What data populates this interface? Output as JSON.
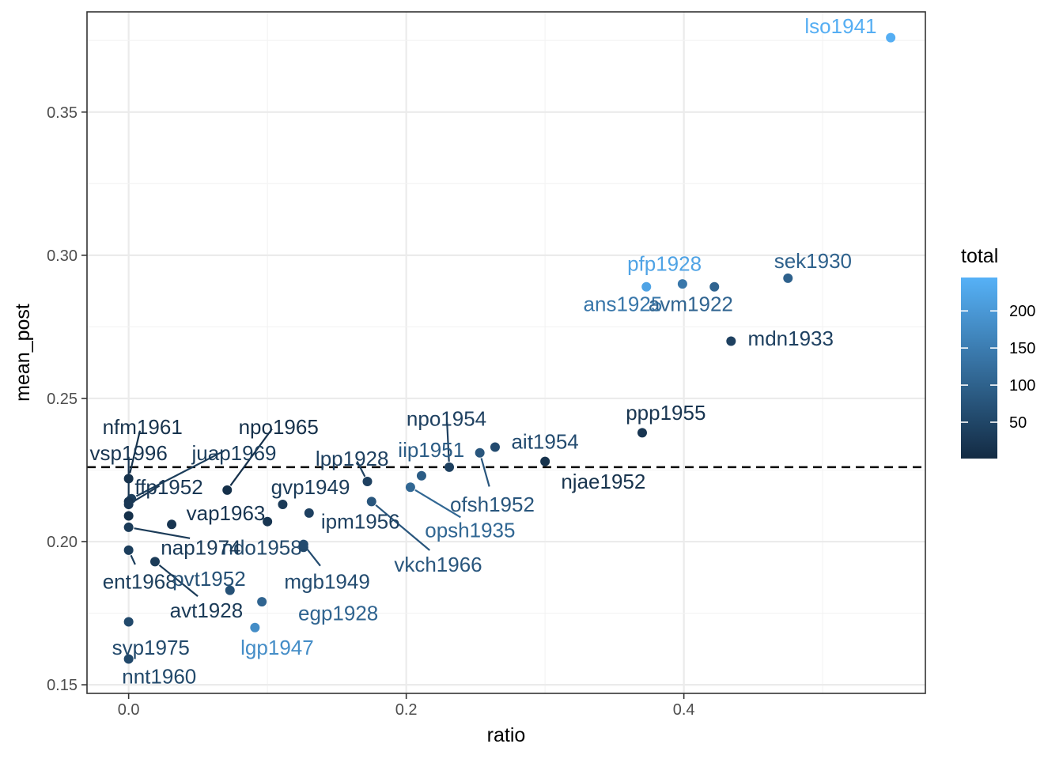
{
  "chart_data": {
    "type": "scatter",
    "xlabel": "ratio",
    "ylabel": "mean_post",
    "xlim": [
      -0.03,
      0.574
    ],
    "ylim": [
      0.147,
      0.385
    ],
    "x_ticks": [
      0.0,
      0.2,
      0.4
    ],
    "x_tick_labels": [
      "0.0",
      "0.2",
      "0.4"
    ],
    "y_ticks": [
      0.15,
      0.2,
      0.25,
      0.3,
      0.35
    ],
    "y_tick_labels": [
      "0.15",
      "0.20",
      "0.25",
      "0.30",
      "0.35"
    ],
    "grid": true,
    "reference_line": {
      "orientation": "horizontal",
      "y": 0.226,
      "style": "dashed"
    },
    "color_scale": {
      "title": "total",
      "min": 1,
      "max": 245,
      "ticks": [
        50,
        100,
        150,
        200
      ],
      "tick_labels": [
        "50",
        "100",
        "150",
        "200"
      ],
      "low_color": "#132B43",
      "high_color": "#56B1F7",
      "legend_placement": "right"
    },
    "points": [
      {
        "label": "lso1941",
        "x": 0.549,
        "y": 0.376,
        "total": 240,
        "lx": 0.513,
        "ly": 0.38
      },
      {
        "label": "sek1930",
        "x": 0.475,
        "y": 0.292,
        "total": 100,
        "lx": 0.493,
        "ly": 0.298
      },
      {
        "label": "pfp1928",
        "x": 0.373,
        "y": 0.289,
        "total": 220,
        "lx": 0.386,
        "ly": 0.297
      },
      {
        "label": "ans1925",
        "x": 0.399,
        "y": 0.29,
        "total": 140,
        "lx": 0.356,
        "ly": 0.283
      },
      {
        "label": "avm1922",
        "x": 0.422,
        "y": 0.289,
        "total": 105,
        "lx": 0.405,
        "ly": 0.283
      },
      {
        "label": "mdn1933",
        "x": 0.434,
        "y": 0.27,
        "total": 40,
        "lx": 0.477,
        "ly": 0.271
      },
      {
        "label": "ppp1955",
        "x": 0.37,
        "y": 0.238,
        "total": 20,
        "lx": 0.387,
        "ly": 0.245
      },
      {
        "label": "njae1952",
        "x": 0.3,
        "y": 0.228,
        "total": 15,
        "lx": 0.342,
        "ly": 0.221
      },
      {
        "label": "ait1954",
        "x": 0.264,
        "y": 0.233,
        "total": 60,
        "lx": 0.3,
        "ly": 0.235
      },
      {
        "label": "npo1954",
        "x": 0.231,
        "y": 0.226,
        "total": 40,
        "lx": 0.229,
        "ly": 0.243,
        "leader": true
      },
      {
        "label": "ofsh1952",
        "x": 0.253,
        "y": 0.231,
        "total": 80,
        "lx": 0.262,
        "ly": 0.213,
        "leader": true
      },
      {
        "label": "iip1951",
        "x": 0.211,
        "y": 0.223,
        "total": 90,
        "lx": 0.218,
        "ly": 0.232
      },
      {
        "label": "opsh1935",
        "x": 0.203,
        "y": 0.219,
        "total": 110,
        "lx": 0.246,
        "ly": 0.204,
        "leader": true
      },
      {
        "label": "lpp1928",
        "x": 0.172,
        "y": 0.221,
        "total": 40,
        "lx": 0.161,
        "ly": 0.229,
        "leader": true
      },
      {
        "label": "vkch1966",
        "x": 0.175,
        "y": 0.214,
        "total": 80,
        "lx": 0.223,
        "ly": 0.192,
        "leader": true
      },
      {
        "label": "ipm1956",
        "x": 0.13,
        "y": 0.21,
        "total": 40,
        "lx": 0.167,
        "ly": 0.207
      },
      {
        "label": "gvp1949",
        "x": 0.111,
        "y": 0.213,
        "total": 30,
        "lx": 0.131,
        "ly": 0.219
      },
      {
        "label": "vap1963",
        "x": 0.1,
        "y": 0.207,
        "total": 20,
        "lx": 0.07,
        "ly": 0.21
      },
      {
        "label": "ndo1958",
        "x": 0.126,
        "y": 0.198,
        "total": 55,
        "lx": 0.096,
        "ly": 0.198
      },
      {
        "label": "mgb1949",
        "x": 0.126,
        "y": 0.199,
        "total": 60,
        "lx": 0.143,
        "ly": 0.186,
        "leader": true
      },
      {
        "label": "npo1965",
        "x": 0.071,
        "y": 0.218,
        "total": 10,
        "lx": 0.108,
        "ly": 0.24,
        "leader": true
      },
      {
        "label": "juap1969",
        "x": 0.002,
        "y": 0.215,
        "total": 35,
        "lx": 0.076,
        "ly": 0.231,
        "leader": true
      },
      {
        "label": "nfm1961",
        "x": 0.0,
        "y": 0.222,
        "total": 15,
        "lx": 0.01,
        "ly": 0.24,
        "leader": true
      },
      {
        "label": "vsp1996",
        "x": 0.0,
        "y": 0.214,
        "total": 20,
        "lx": 0.0,
        "ly": 0.231,
        "leader": true
      },
      {
        "label": "ffp1952",
        "x": 0.0,
        "y": 0.213,
        "total": 25,
        "lx": 0.029,
        "ly": 0.219,
        "leader": true
      },
      {
        "label": "nap1974",
        "x": 0.0,
        "y": 0.205,
        "total": 30,
        "lx": 0.052,
        "ly": 0.198,
        "leader": true
      },
      {
        "label": "ent1968",
        "x": 0.0,
        "y": 0.197,
        "total": 35,
        "lx": 0.008,
        "ly": 0.186,
        "leader": true
      },
      {
        "label": "avt1928",
        "x": 0.019,
        "y": 0.193,
        "total": 30,
        "lx": 0.056,
        "ly": 0.176,
        "leader": true
      },
      {
        "label": "pvt1952",
        "x": 0.073,
        "y": 0.183,
        "total": 70,
        "lx": 0.058,
        "ly": 0.187
      },
      {
        "label": "egp1928",
        "x": 0.096,
        "y": 0.179,
        "total": 105,
        "lx": 0.151,
        "ly": 0.175
      },
      {
        "label": "lgp1947",
        "x": 0.091,
        "y": 0.17,
        "total": 180,
        "lx": 0.107,
        "ly": 0.163
      },
      {
        "label": "svp1975",
        "x": 0.0,
        "y": 0.172,
        "total": 55,
        "lx": 0.016,
        "ly": 0.163
      },
      {
        "label": "nnt1960",
        "x": 0.0,
        "y": 0.159,
        "total": 55,
        "lx": 0.022,
        "ly": 0.153
      },
      {
        "label": "",
        "x": 0.0,
        "y": 0.209,
        "total": 10
      },
      {
        "label": "",
        "x": 0.031,
        "y": 0.206,
        "total": 20
      }
    ]
  }
}
